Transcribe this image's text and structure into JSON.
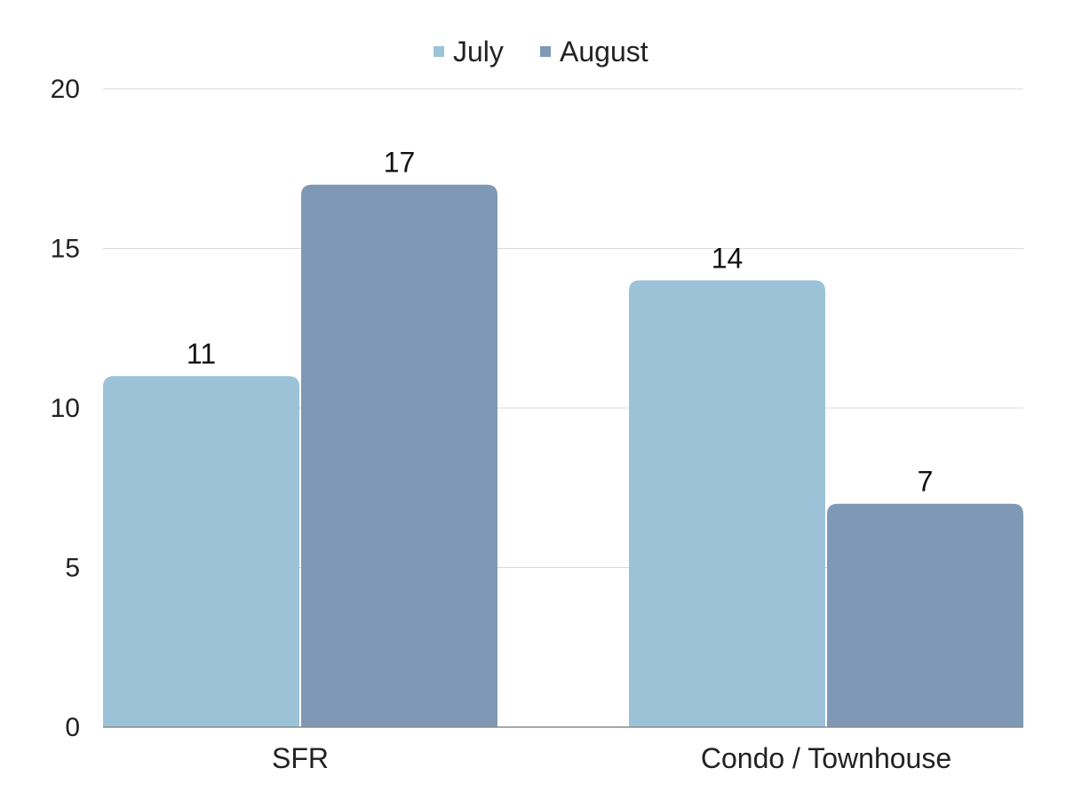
{
  "chart_data": {
    "type": "bar",
    "categories": [
      "SFR",
      "Condo / Townhouse"
    ],
    "series": [
      {
        "name": "July",
        "values": [
          11,
          14
        ],
        "color": "#9cc2d8"
      },
      {
        "name": "August",
        "values": [
          17,
          7
        ],
        "color": "#7f98b5"
      }
    ],
    "yticks": [
      "0",
      "5",
      "10",
      "15",
      "20"
    ],
    "ylim": [
      0,
      20
    ],
    "grid": true,
    "legend": "top-center",
    "data_labels": true,
    "title": "",
    "xlabel": "",
    "ylabel": ""
  }
}
